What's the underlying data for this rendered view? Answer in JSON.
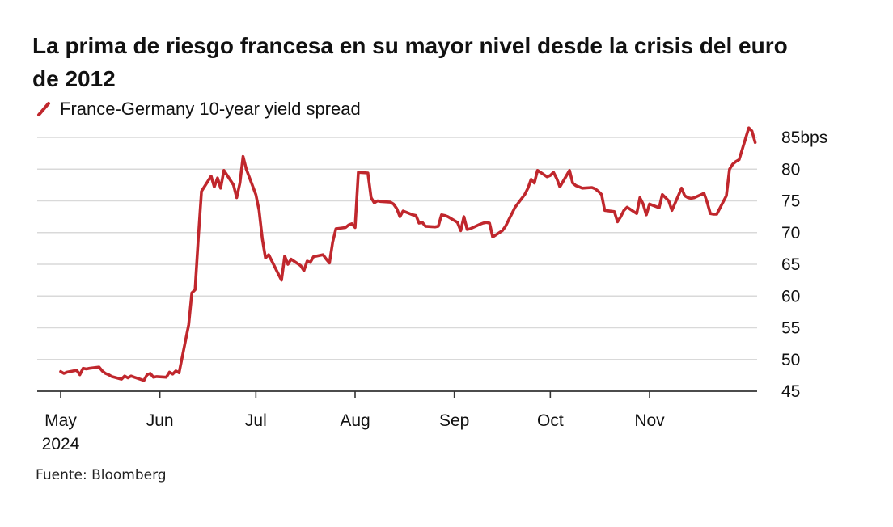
{
  "title": "La prima de riesgo francesa en su mayor nivel desde la crisis del euro de 2012",
  "source": "Fuente: Bloomberg",
  "chart_data": {
    "type": "line",
    "title": "La prima de riesgo francesa en su mayor nivel desde la crisis del euro de 2012",
    "ylabel": "",
    "xlabel": "",
    "y_unit": "bps",
    "ylim": [
      45,
      86
    ],
    "y_ticks": [
      {
        "value": 45,
        "label": "45"
      },
      {
        "value": 50,
        "label": "50"
      },
      {
        "value": 55,
        "label": "55"
      },
      {
        "value": 60,
        "label": "60"
      },
      {
        "value": 65,
        "label": "65"
      },
      {
        "value": 70,
        "label": "70"
      },
      {
        "value": 75,
        "label": "75"
      },
      {
        "value": 80,
        "label": "80"
      },
      {
        "value": 85,
        "label": "85bps"
      }
    ],
    "x_ticks": [
      {
        "date": "2024-05-01",
        "label": "May",
        "sublabel": "2024"
      },
      {
        "date": "2024-06-01",
        "label": "Jun",
        "sublabel": ""
      },
      {
        "date": "2024-07-01",
        "label": "Jul",
        "sublabel": ""
      },
      {
        "date": "2024-08-01",
        "label": "Aug",
        "sublabel": ""
      },
      {
        "date": "2024-09-01",
        "label": "Sep",
        "sublabel": ""
      },
      {
        "date": "2024-10-01",
        "label": "Oct",
        "sublabel": ""
      },
      {
        "date": "2024-11-01",
        "label": "Nov",
        "sublabel": ""
      }
    ],
    "xlim": [
      "2024-04-30",
      "2024-12-04"
    ],
    "grid": true,
    "legend_position": "top-left",
    "series": [
      {
        "name": "France-Germany 10-year yield spread",
        "color": "#c0272d",
        "points": [
          [
            "2024-05-01",
            48.1
          ],
          [
            "2024-05-02",
            47.8
          ],
          [
            "2024-05-03",
            48.0
          ],
          [
            "2024-05-06",
            48.3
          ],
          [
            "2024-05-07",
            47.6
          ],
          [
            "2024-05-08",
            48.6
          ],
          [
            "2024-05-09",
            48.5
          ],
          [
            "2024-05-10",
            48.6
          ],
          [
            "2024-05-13",
            48.8
          ],
          [
            "2024-05-14",
            48.2
          ],
          [
            "2024-05-15",
            47.8
          ],
          [
            "2024-05-16",
            47.6
          ],
          [
            "2024-05-17",
            47.3
          ],
          [
            "2024-05-20",
            46.9
          ],
          [
            "2024-05-21",
            47.4
          ],
          [
            "2024-05-22",
            47.1
          ],
          [
            "2024-05-23",
            47.4
          ],
          [
            "2024-05-24",
            47.2
          ],
          [
            "2024-05-27",
            46.7
          ],
          [
            "2024-05-28",
            47.6
          ],
          [
            "2024-05-29",
            47.8
          ],
          [
            "2024-05-30",
            47.2
          ],
          [
            "2024-05-31",
            47.3
          ],
          [
            "2024-06-03",
            47.2
          ],
          [
            "2024-06-04",
            48.0
          ],
          [
            "2024-06-05",
            47.7
          ],
          [
            "2024-06-06",
            48.2
          ],
          [
            "2024-06-07",
            47.9
          ],
          [
            "2024-06-10",
            55.5
          ],
          [
            "2024-06-11",
            60.5
          ],
          [
            "2024-06-12",
            61.0
          ],
          [
            "2024-06-13",
            69.0
          ],
          [
            "2024-06-14",
            76.5
          ],
          [
            "2024-06-17",
            78.9
          ],
          [
            "2024-06-18",
            77.2
          ],
          [
            "2024-06-19",
            78.6
          ],
          [
            "2024-06-20",
            77.0
          ],
          [
            "2024-06-21",
            79.8
          ],
          [
            "2024-06-24",
            77.5
          ],
          [
            "2024-06-25",
            75.5
          ],
          [
            "2024-06-26",
            77.8
          ],
          [
            "2024-06-27",
            82.0
          ],
          [
            "2024-06-28",
            80.0
          ],
          [
            "2024-07-01",
            76.0
          ],
          [
            "2024-07-02",
            73.5
          ],
          [
            "2024-07-03",
            69.0
          ],
          [
            "2024-07-04",
            66.0
          ],
          [
            "2024-07-05",
            66.5
          ],
          [
            "2024-07-08",
            63.5
          ],
          [
            "2024-07-09",
            62.5
          ],
          [
            "2024-07-10",
            66.3
          ],
          [
            "2024-07-11",
            65.0
          ],
          [
            "2024-07-12",
            65.8
          ],
          [
            "2024-07-15",
            64.8
          ],
          [
            "2024-07-16",
            64.0
          ],
          [
            "2024-07-17",
            65.5
          ],
          [
            "2024-07-18",
            65.3
          ],
          [
            "2024-07-19",
            66.2
          ],
          [
            "2024-07-22",
            66.5
          ],
          [
            "2024-07-23",
            65.8
          ],
          [
            "2024-07-24",
            65.2
          ],
          [
            "2024-07-25",
            68.5
          ],
          [
            "2024-07-26",
            70.6
          ],
          [
            "2024-07-29",
            70.8
          ],
          [
            "2024-07-30",
            71.2
          ],
          [
            "2024-07-31",
            71.4
          ],
          [
            "2024-08-01",
            70.8
          ],
          [
            "2024-08-02",
            79.5
          ],
          [
            "2024-08-05",
            79.4
          ],
          [
            "2024-08-06",
            75.5
          ],
          [
            "2024-08-07",
            74.7
          ],
          [
            "2024-08-08",
            75.0
          ],
          [
            "2024-08-09",
            74.9
          ],
          [
            "2024-08-12",
            74.8
          ],
          [
            "2024-08-13",
            74.5
          ],
          [
            "2024-08-14",
            73.8
          ],
          [
            "2024-08-15",
            72.5
          ],
          [
            "2024-08-16",
            73.4
          ],
          [
            "2024-08-19",
            72.8
          ],
          [
            "2024-08-20",
            72.7
          ],
          [
            "2024-08-21",
            71.5
          ],
          [
            "2024-08-22",
            71.6
          ],
          [
            "2024-08-23",
            71.0
          ],
          [
            "2024-08-26",
            70.9
          ],
          [
            "2024-08-27",
            71.0
          ],
          [
            "2024-08-28",
            72.8
          ],
          [
            "2024-08-29",
            72.7
          ],
          [
            "2024-08-30",
            72.5
          ],
          [
            "2024-09-02",
            71.6
          ],
          [
            "2024-09-03",
            70.3
          ],
          [
            "2024-09-04",
            72.5
          ],
          [
            "2024-09-05",
            70.5
          ],
          [
            "2024-09-06",
            70.6
          ],
          [
            "2024-09-09",
            71.3
          ],
          [
            "2024-09-10",
            71.5
          ],
          [
            "2024-09-11",
            71.6
          ],
          [
            "2024-09-12",
            71.5
          ],
          [
            "2024-09-13",
            69.3
          ],
          [
            "2024-09-16",
            70.3
          ],
          [
            "2024-09-17",
            71.0
          ],
          [
            "2024-09-18",
            72.0
          ],
          [
            "2024-09-19",
            73.0
          ],
          [
            "2024-09-20",
            74.0
          ],
          [
            "2024-09-23",
            76.0
          ],
          [
            "2024-09-24",
            77.0
          ],
          [
            "2024-09-25",
            78.4
          ],
          [
            "2024-09-26",
            77.8
          ],
          [
            "2024-09-27",
            79.8
          ],
          [
            "2024-09-30",
            78.8
          ],
          [
            "2024-10-01",
            79.0
          ],
          [
            "2024-10-02",
            79.5
          ],
          [
            "2024-10-03",
            78.5
          ],
          [
            "2024-10-04",
            77.2
          ],
          [
            "2024-10-07",
            79.8
          ],
          [
            "2024-10-08",
            77.8
          ],
          [
            "2024-10-09",
            77.4
          ],
          [
            "2024-10-10",
            77.2
          ],
          [
            "2024-10-11",
            77.0
          ],
          [
            "2024-10-14",
            77.1
          ],
          [
            "2024-10-15",
            76.9
          ],
          [
            "2024-10-16",
            76.5
          ],
          [
            "2024-10-17",
            76.0
          ],
          [
            "2024-10-18",
            73.5
          ],
          [
            "2024-10-21",
            73.3
          ],
          [
            "2024-10-22",
            71.7
          ],
          [
            "2024-10-23",
            72.5
          ],
          [
            "2024-10-24",
            73.5
          ],
          [
            "2024-10-25",
            74.0
          ],
          [
            "2024-10-28",
            73.0
          ],
          [
            "2024-10-29",
            75.5
          ],
          [
            "2024-10-30",
            74.5
          ],
          [
            "2024-10-31",
            72.8
          ],
          [
            "2024-11-01",
            74.5
          ],
          [
            "2024-11-04",
            73.9
          ],
          [
            "2024-11-05",
            76.0
          ],
          [
            "2024-11-06",
            75.5
          ],
          [
            "2024-11-07",
            75.0
          ],
          [
            "2024-11-08",
            73.5
          ],
          [
            "2024-11-11",
            77.0
          ],
          [
            "2024-11-12",
            75.8
          ],
          [
            "2024-11-13",
            75.5
          ],
          [
            "2024-11-14",
            75.4
          ],
          [
            "2024-11-15",
            75.5
          ],
          [
            "2024-11-18",
            76.2
          ],
          [
            "2024-11-19",
            74.8
          ],
          [
            "2024-11-20",
            73.0
          ],
          [
            "2024-11-21",
            72.9
          ],
          [
            "2024-11-22",
            72.9
          ],
          [
            "2024-11-25",
            75.8
          ],
          [
            "2024-11-26",
            80.0
          ],
          [
            "2024-11-27",
            80.8
          ],
          [
            "2024-11-28",
            81.2
          ],
          [
            "2024-11-29",
            81.5
          ],
          [
            "2024-12-02",
            86.5
          ],
          [
            "2024-12-03",
            86.0
          ],
          [
            "2024-12-04",
            84.2
          ]
        ]
      }
    ]
  }
}
